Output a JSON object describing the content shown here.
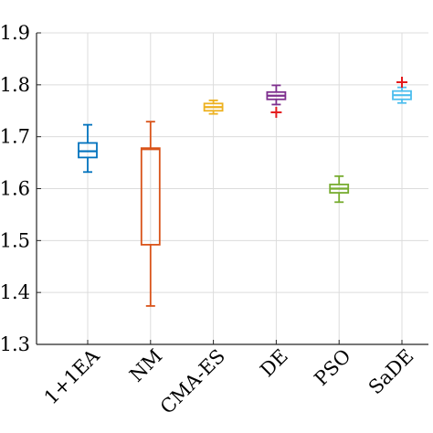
{
  "chart_data": {
    "type": "boxplot",
    "title": "",
    "xlabel": "",
    "ylabel": "",
    "ylim": [
      1.3,
      1.9
    ],
    "yticks": [
      1.3,
      1.4,
      1.5,
      1.6,
      1.7,
      1.8,
      1.9
    ],
    "ytick_labels": [
      "1.3",
      "1.4",
      "1.5",
      "1.6",
      "1.7",
      "1.8",
      "1.9"
    ],
    "grid": true,
    "categories": [
      "1+1EA",
      "NM",
      "CMA-ES",
      "DE",
      "PSO",
      "SaDE"
    ],
    "colors": [
      "#0072bd",
      "#d95319",
      "#edb120",
      "#7e2f8e",
      "#77ac30",
      "#4dbeee"
    ],
    "outlier_color": "#e41a1c",
    "boxes": [
      {
        "min": 1.632,
        "q1": 1.66,
        "median": 1.672,
        "q3": 1.688,
        "max": 1.723,
        "outliers": []
      },
      {
        "min": 1.374,
        "q1": 1.492,
        "median": 1.676,
        "q3": 1.678,
        "max": 1.729,
        "outliers": []
      },
      {
        "min": 1.744,
        "q1": 1.75,
        "median": 1.757,
        "q3": 1.764,
        "max": 1.77,
        "outliers": []
      },
      {
        "min": 1.762,
        "q1": 1.772,
        "median": 1.779,
        "q3": 1.786,
        "max": 1.799,
        "outliers": [
          1.747
        ]
      },
      {
        "min": 1.574,
        "q1": 1.592,
        "median": 1.6,
        "q3": 1.608,
        "max": 1.624,
        "outliers": []
      },
      {
        "min": 1.765,
        "q1": 1.772,
        "median": 1.78,
        "q3": 1.788,
        "max": 1.795,
        "outliers": [
          1.805
        ]
      }
    ]
  }
}
